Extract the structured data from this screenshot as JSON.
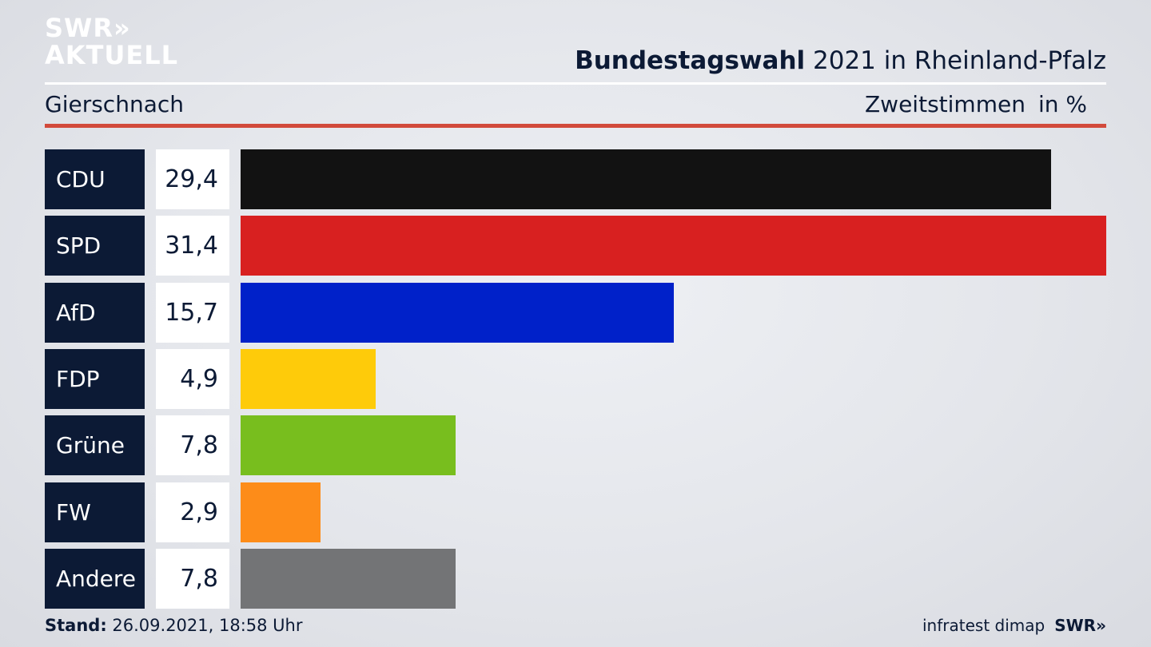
{
  "logo": {
    "line1": "SWR",
    "line1_chevrons": "»",
    "line2": "AKTUELL"
  },
  "header": {
    "title_bold": "Bundestagswahl",
    "title_rest": " 2021 in Rheinland-Pfalz",
    "location": "Gierschnach",
    "measure": "Zweitstimmen",
    "unit": "in %"
  },
  "chart_data": {
    "type": "bar",
    "orientation": "horizontal",
    "categories": [
      "CDU",
      "SPD",
      "AfD",
      "FDP",
      "Grüne",
      "FW",
      "Andere"
    ],
    "values": [
      29.4,
      31.4,
      15.7,
      4.9,
      7.8,
      2.9,
      7.8
    ],
    "value_labels": [
      "29,4",
      "31,4",
      "15,7",
      "4,9",
      "7,8",
      "2,9",
      "7,8"
    ],
    "colors": [
      "#121212",
      "#d82020",
      "#0021c9",
      "#fecb0a",
      "#78be1e",
      "#fd8c19",
      "#737476"
    ],
    "xlim": [
      0,
      31.4
    ],
    "grid": false,
    "legend": "none"
  },
  "footer": {
    "stand_label": "Stand:",
    "stand_value": " 26.09.2021, 18:58 Uhr",
    "source": "infratest dimap",
    "broadcaster": "SWR",
    "broadcaster_chevrons": "»"
  }
}
